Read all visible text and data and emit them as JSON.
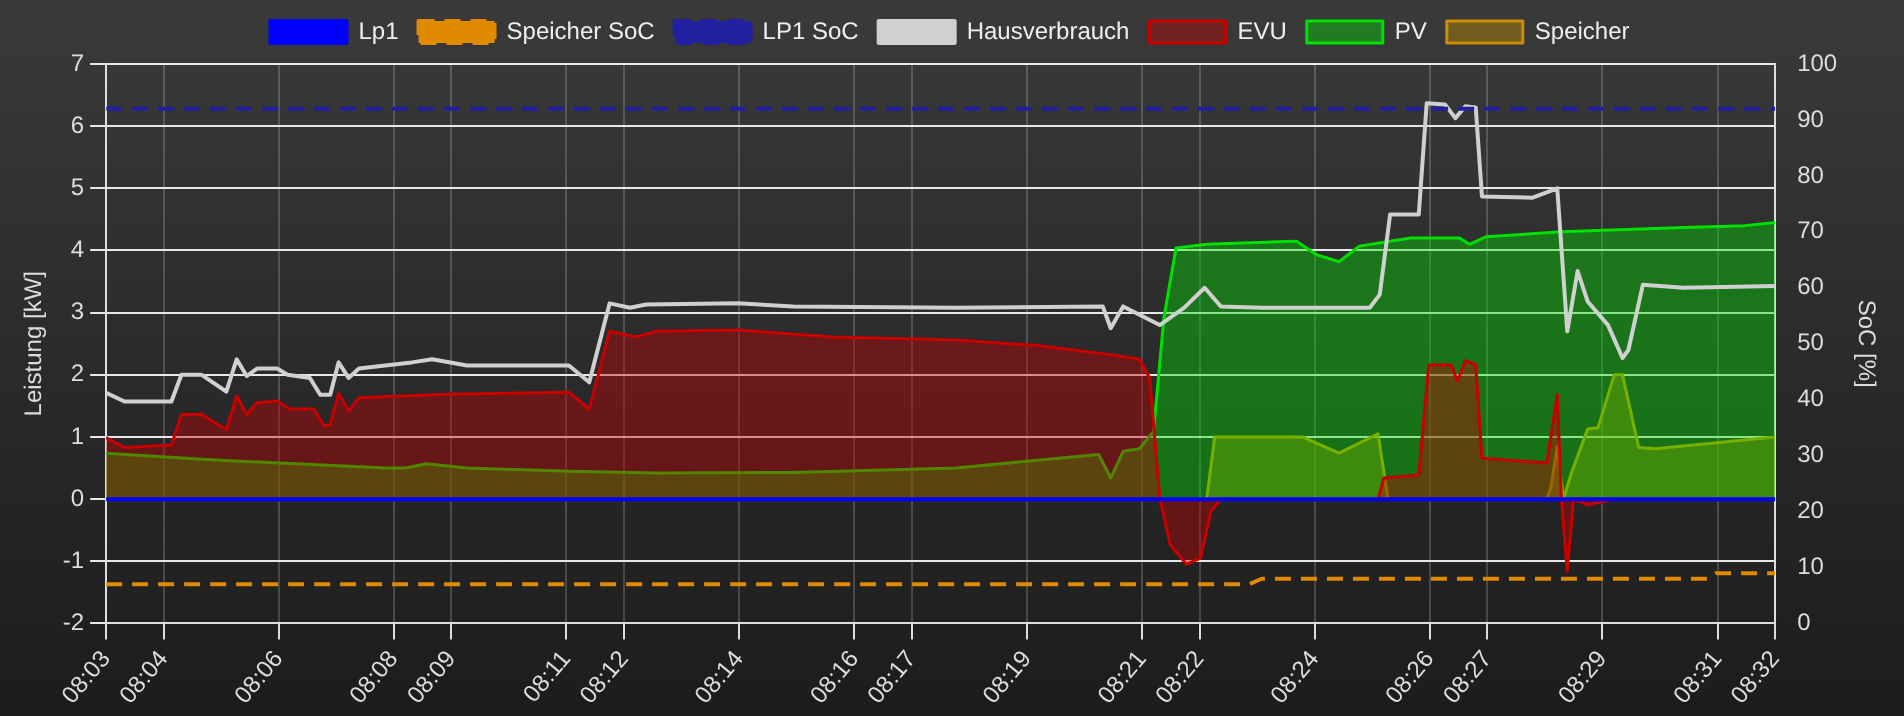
{
  "chart_data": {
    "type": "line",
    "xlabel": null,
    "ylabel": "Leistung [kW]",
    "y2label": "SoC [%]",
    "xlim": [
      8.05,
      8.5333
    ],
    "xticks": [
      {
        "value": 8.05,
        "label": "08:03"
      },
      {
        "value": 8.0667,
        "label": "08:04"
      },
      {
        "value": 8.1,
        "label": "08:06"
      },
      {
        "value": 8.1333,
        "label": "08:08"
      },
      {
        "value": 8.15,
        "label": "08:09"
      },
      {
        "value": 8.1833,
        "label": "08:11"
      },
      {
        "value": 8.2,
        "label": "08:12"
      },
      {
        "value": 8.2333,
        "label": "08:14"
      },
      {
        "value": 8.2667,
        "label": "08:16"
      },
      {
        "value": 8.2833,
        "label": "08:17"
      },
      {
        "value": 8.3167,
        "label": "08:19"
      },
      {
        "value": 8.35,
        "label": "08:21"
      },
      {
        "value": 8.3667,
        "label": "08:22"
      },
      {
        "value": 8.4,
        "label": "08:24"
      },
      {
        "value": 8.4333,
        "label": "08:26"
      },
      {
        "value": 8.45,
        "label": "08:27"
      },
      {
        "value": 8.4833,
        "label": "08:29"
      },
      {
        "value": 8.5167,
        "label": "08:31"
      },
      {
        "value": 8.5333,
        "label": "08:32"
      }
    ],
    "ylim": [
      -2,
      7
    ],
    "yticks": [
      -2,
      -1,
      0,
      1,
      2,
      3,
      4,
      5,
      6,
      7
    ],
    "y2lim": [
      0,
      100
    ],
    "y2ticks": [
      0,
      10,
      20,
      30,
      40,
      50,
      60,
      70,
      80,
      90,
      100
    ],
    "grid": true,
    "legend": "top",
    "marker": "none",
    "series": [
      {
        "name": "Lp1",
        "type": "line",
        "color": "#0000ff",
        "x": [
          8.05,
          8.5333
        ],
        "values": [
          0,
          0
        ]
      },
      {
        "name": "EVU",
        "type": "area",
        "color": "#c80000",
        "x": [
          8.05,
          8.0553,
          8.0689,
          8.0718,
          8.0777,
          8.0848,
          8.0878,
          8.0907,
          8.0937,
          8.0996,
          8.1031,
          8.1102,
          8.1131,
          8.1149,
          8.1173,
          8.1202,
          8.1232,
          8.1503,
          8.184,
          8.1899,
          8.1958,
          8.2034,
          8.2093,
          8.233,
          8.2607,
          8.2961,
          8.3197,
          8.3415,
          8.3492,
          8.3522,
          8.3551,
          8.3581,
          8.3628,
          8.3669,
          8.3699,
          8.3728,
          8.4183,
          8.42,
          8.4301,
          8.433,
          8.4395,
          8.4413,
          8.4436,
          8.4466,
          8.4484,
          8.4672,
          8.4702,
          8.4714,
          8.4731,
          8.4749,
          8.479,
          8.4867,
          8.5333
        ],
        "values": [
          0.99,
          0.83,
          0.87,
          1.36,
          1.36,
          1.12,
          1.66,
          1.36,
          1.55,
          1.58,
          1.45,
          1.45,
          1.18,
          1.2,
          1.7,
          1.42,
          1.63,
          1.69,
          1.72,
          1.45,
          2.7,
          2.61,
          2.7,
          2.72,
          2.61,
          2.56,
          2.47,
          2.32,
          2.25,
          1.95,
          0.02,
          -0.73,
          -1.05,
          -0.95,
          -0.2,
          0,
          0,
          0.34,
          0.39,
          2.16,
          2.16,
          1.9,
          2.23,
          2.16,
          0.66,
          0.58,
          1.68,
          0,
          -1.16,
          0,
          -0.09,
          0,
          0
        ]
      },
      {
        "name": "PV",
        "type": "area",
        "color": "#00e000",
        "x": [
          8.05,
          8.0777,
          8.1309,
          8.1368,
          8.1427,
          8.1545,
          8.184,
          8.2093,
          8.2489,
          8.2961,
          8.3374,
          8.3409,
          8.3445,
          8.3492,
          8.3533,
          8.3563,
          8.3598,
          8.3687,
          8.3947,
          8.4006,
          8.407,
          8.4129,
          8.4277,
          8.4419,
          8.4448,
          8.4495,
          8.4714,
          8.5068,
          8.5245,
          8.5333
        ],
        "values": [
          0.74,
          0.64,
          0.5,
          0.5,
          0.57,
          0.5,
          0.45,
          0.42,
          0.43,
          0.5,
          0.72,
          0.34,
          0.77,
          0.81,
          1.09,
          2.92,
          4.04,
          4.1,
          4.15,
          3.93,
          3.82,
          4.07,
          4.2,
          4.2,
          4.1,
          4.22,
          4.3,
          4.37,
          4.4,
          4.45
        ]
      },
      {
        "name": "Speicher",
        "type": "area",
        "color": "#c89000",
        "x": [
          8.05,
          8.3687,
          8.371,
          8.3964,
          8.407,
          8.4183,
          8.4212,
          8.4672,
          8.4684,
          8.4702,
          8.472,
          8.4743,
          8.479,
          8.482,
          8.4867,
          8.4891,
          8.4938,
          8.4985,
          8.5333
        ],
        "values": [
          0,
          0,
          1.0,
          1.0,
          0.74,
          1.05,
          0,
          0,
          0.2,
          0.85,
          0,
          0.42,
          1.13,
          1.15,
          2.0,
          2.0,
          0.83,
          0.81,
          1.0
        ]
      },
      {
        "name": "Speicher SoC",
        "type": "line",
        "axis": "y2",
        "line_style": "dashed",
        "color": "#e08a00",
        "x": [
          8.05,
          8.381,
          8.3846,
          8.514,
          8.5162,
          8.5333
        ],
        "values": [
          7,
          7,
          8,
          8,
          9,
          9
        ]
      },
      {
        "name": "LP1 SoC",
        "type": "line",
        "axis": "y2",
        "line_style": "dashed",
        "color": "#2020a0",
        "x": [
          8.05,
          8.5333
        ],
        "values": [
          92,
          92
        ]
      },
      {
        "name": "Hausverbrauch",
        "type": "line",
        "color": "#d0d0d0",
        "x": [
          8.05,
          8.0553,
          8.0689,
          8.0718,
          8.0777,
          8.0848,
          8.0878,
          8.0907,
          8.0937,
          8.0996,
          8.1025,
          8.109,
          8.112,
          8.1149,
          8.1173,
          8.1202,
          8.1232,
          8.1385,
          8.1444,
          8.1545,
          8.184,
          8.1899,
          8.1958,
          8.2017,
          8.2064,
          8.233,
          8.2489,
          8.2961,
          8.3386,
          8.3409,
          8.3445,
          8.3551,
          8.3622,
          8.3681,
          8.3728,
          8.3846,
          8.4159,
          8.4188,
          8.4218,
          8.4301,
          8.4324,
          8.4377,
          8.4407,
          8.4436,
          8.4466,
          8.4484,
          8.4631,
          8.4702,
          8.4731,
          8.4761,
          8.479,
          8.4849,
          8.4891,
          8.4908,
          8.495,
          8.5068,
          8.5333
        ],
        "values": [
          1.71,
          1.57,
          1.57,
          2.0,
          2.0,
          1.73,
          2.25,
          1.98,
          2.1,
          2.1,
          2.0,
          1.95,
          1.68,
          1.68,
          2.2,
          1.95,
          2.1,
          2.2,
          2.25,
          2.15,
          2.15,
          1.88,
          3.15,
          3.08,
          3.13,
          3.15,
          3.1,
          3.08,
          3.1,
          2.75,
          3.1,
          2.8,
          3.08,
          3.4,
          3.1,
          3.08,
          3.08,
          3.29,
          4.58,
          4.58,
          6.37,
          6.35,
          6.13,
          6.32,
          6.3,
          4.87,
          4.85,
          5.0,
          2.7,
          3.67,
          3.18,
          2.8,
          2.27,
          2.4,
          3.45,
          3.4,
          3.43
        ]
      }
    ]
  }
}
